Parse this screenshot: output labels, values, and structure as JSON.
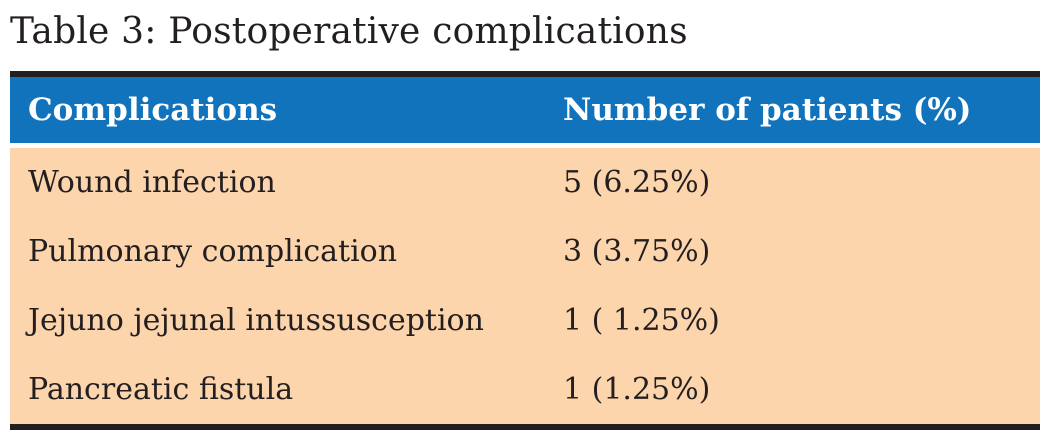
{
  "caption": "Table 3: Postoperative complications",
  "table": {
    "columns": [
      "Complications",
      "Number of patients (%)"
    ],
    "rows": [
      {
        "complication": "Wound infection",
        "value": "5 (6.25%)"
      },
      {
        "complication": "Pulmonary complication",
        "value": "3 (3.75%)"
      },
      {
        "complication": "Jejuno jejunal intussusception",
        "value": "1 ( 1.25%)"
      },
      {
        "complication": "Pancreatic fistula",
        "value": "1 (1.25%)"
      }
    ]
  },
  "colors": {
    "header_bg": "#1273bd",
    "header_text": "#ffffff",
    "body_bg": "#fcd5ac",
    "rule": "#231f20",
    "text": "#231f20",
    "page_bg": "#ffffff"
  }
}
